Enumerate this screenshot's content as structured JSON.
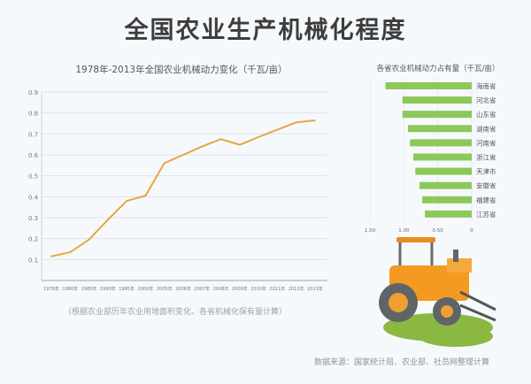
{
  "title": "全国农业生产机械化程度",
  "note": "（根据农业部历年农业用地面积变化、各省机械化保有量计算）",
  "source": "数据来源：国家统计局、农业部、社员网整理计算",
  "colors": {
    "line": "#e8a63c",
    "bar": "#8cc85a",
    "grid": "#dde3ea"
  },
  "chart_data": [
    {
      "type": "line",
      "title": "1978年-2013年全国农业机械动力变化（千瓦/亩）",
      "xlabel": "",
      "ylabel": "",
      "categories": [
        "1978年",
        "1980年",
        "1985年",
        "1990年",
        "1995年",
        "2000年",
        "2005年",
        "2006年",
        "2007年",
        "2008年",
        "2009年",
        "2010年",
        "2011年",
        "2012年",
        "2013年"
      ],
      "values": [
        0.115,
        0.135,
        0.195,
        0.29,
        0.38,
        0.405,
        0.56,
        0.6,
        0.64,
        0.675,
        0.648,
        0.685,
        0.72,
        0.755,
        0.765
      ],
      "yticks": [
        "0.1",
        "0.2",
        "0.3",
        "0.4",
        "0.5",
        "0.6",
        "0.7",
        "0.8",
        "0.9"
      ],
      "ylim": [
        0,
        0.9
      ],
      "grid": true
    },
    {
      "type": "bar",
      "orientation": "horizontal-reversed",
      "title": "各省农业机械动力占有量（千瓦/亩）",
      "categories": [
        "海南省",
        "河北省",
        "山东省",
        "湖南省",
        "河南省",
        "浙江省",
        "天津市",
        "安徽省",
        "福建省",
        "江苏省"
      ],
      "values": [
        1.27,
        1.02,
        1.02,
        0.94,
        0.91,
        0.86,
        0.83,
        0.77,
        0.73,
        0.69
      ],
      "xticks": [
        "1.50",
        "1.00",
        "0.50",
        "0"
      ],
      "xlim": [
        0,
        1.5
      ]
    }
  ]
}
